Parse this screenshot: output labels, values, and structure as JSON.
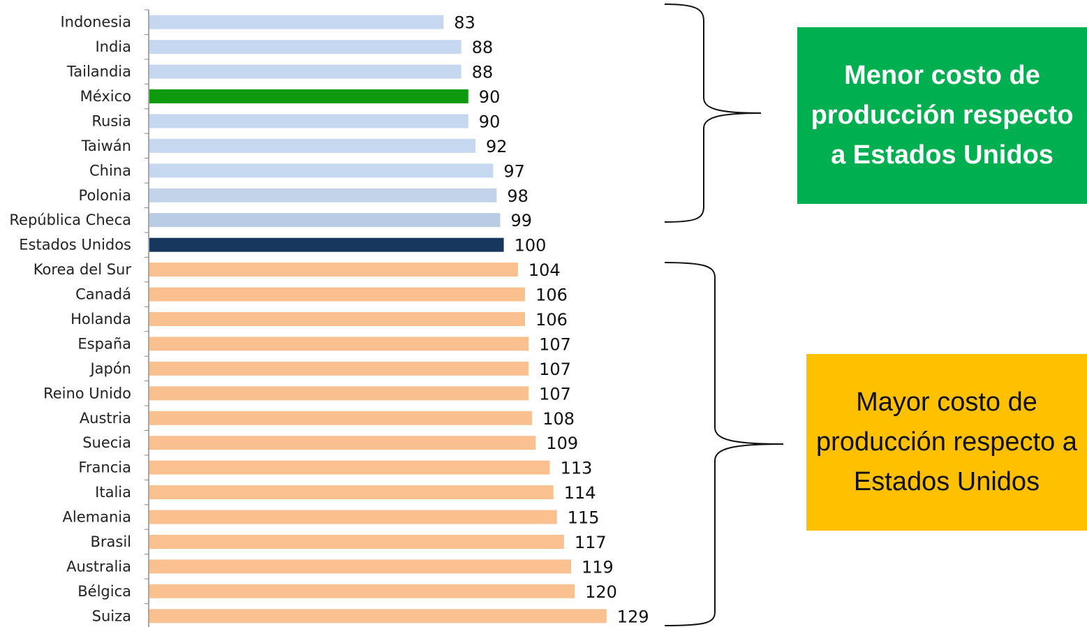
{
  "chart_data": {
    "type": "bar",
    "orientation": "horizontal",
    "categories": [
      "Indonesia",
      "India",
      "Tailandia",
      "México",
      "Rusia",
      "Taiwán",
      "China",
      "Polonia",
      "República Checa",
      "Estados Unidos",
      "Korea del Sur",
      "Canadá",
      "Holanda",
      "España",
      "Japón",
      "Reino Unido",
      "Austria",
      "Suecia",
      "Francia",
      "Italia",
      "Alemania",
      "Brasil",
      "Australia",
      "Bélgica",
      "Suiza"
    ],
    "values": [
      83,
      88,
      88,
      90,
      90,
      92,
      97,
      98,
      99,
      100,
      104,
      106,
      106,
      107,
      107,
      107,
      108,
      109,
      113,
      114,
      115,
      117,
      119,
      120,
      129
    ],
    "value_labels": [
      "83",
      "88",
      "88",
      "90",
      "90",
      "92",
      "97",
      "98",
      "99",
      "100",
      "104",
      "106",
      "106",
      "107",
      "107",
      "107",
      "108",
      "109",
      "113",
      "114",
      "115",
      "117",
      "119",
      "120",
      "129"
    ],
    "bar_colors": [
      "#c6d8f0",
      "#c6d8f0",
      "#c6d8f0",
      "#0e9a0e",
      "#c6d8f0",
      "#c6d8f0",
      "#c6d8f0",
      "#c2d3ea",
      "#b8cce4",
      "#17375e",
      "#fac090",
      "#fac090",
      "#fac090",
      "#fac090",
      "#fac090",
      "#fac090",
      "#fac090",
      "#fac090",
      "#fac090",
      "#fac090",
      "#fac090",
      "#fac090",
      "#fac090",
      "#fac090",
      "#fac090"
    ],
    "title": "",
    "xlabel": "",
    "ylabel": "",
    "xlim": [
      0,
      130
    ],
    "grid": false,
    "legend": "none"
  },
  "annotations": {
    "low_cost": {
      "text": "Menor costo de producción respecto a Estados Unidos",
      "background": "#00b050",
      "color": "#ffffff"
    },
    "high_cost": {
      "text": "Mayor costo de producción respecto a Estados Unidos",
      "background": "#ffc000",
      "color": "#111111"
    }
  }
}
